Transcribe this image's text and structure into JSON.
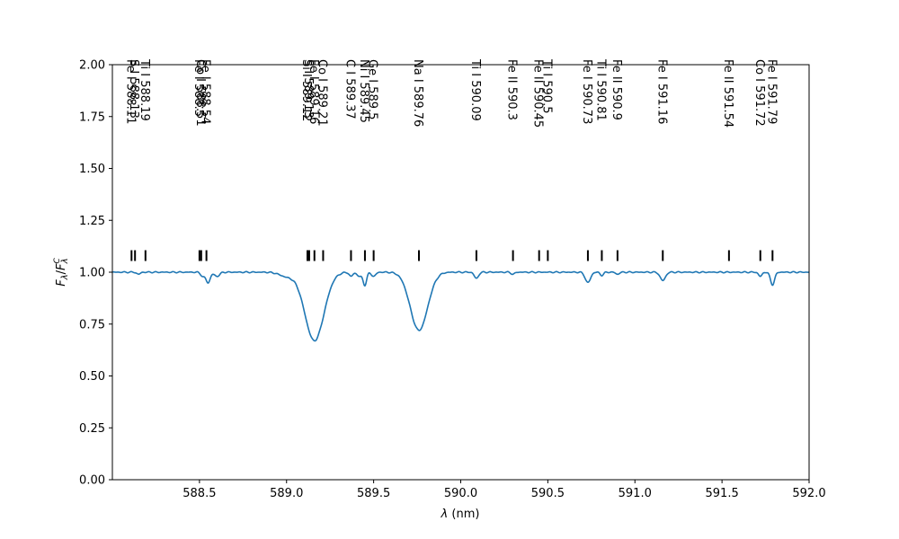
{
  "chart_data": {
    "type": "line",
    "title": "",
    "xlabel": "λ (nm)",
    "ylabel": "F_λ/F_λ^C",
    "xlim": [
      588.0,
      592.0
    ],
    "ylim": [
      0.0,
      2.0
    ],
    "xticks": [
      588.5,
      589.0,
      589.5,
      590.0,
      590.5,
      591.0,
      591.5,
      592.0
    ],
    "xtick_labels": [
      "588.5",
      "589.0",
      "589.5",
      "590.0",
      "590.5",
      "591.0",
      "591.5",
      "592.0"
    ],
    "yticks": [
      0.0,
      0.25,
      0.5,
      0.75,
      1.0,
      1.25,
      1.5,
      1.75,
      2.0
    ],
    "ytick_labels": [
      "0.00",
      "0.25",
      "0.50",
      "0.75",
      "1.00",
      "1.25",
      "1.50",
      "1.75",
      "2.00"
    ],
    "series_color": "#1f77b4",
    "continuum": 1.0,
    "absorption_lines": [
      {
        "center": 588.15,
        "depth": 0.01,
        "width": 0.01
      },
      {
        "center": 588.52,
        "depth": 0.02,
        "width": 0.012
      },
      {
        "center": 588.55,
        "depth": 0.05,
        "width": 0.012
      },
      {
        "center": 588.6,
        "depth": 0.02,
        "width": 0.015
      },
      {
        "center": 589.0,
        "depth": 0.02,
        "width": 0.04
      },
      {
        "center": 589.16,
        "depth": 0.33,
        "width": 0.055
      },
      {
        "center": 589.37,
        "depth": 0.02,
        "width": 0.01
      },
      {
        "center": 589.42,
        "depth": 0.02,
        "width": 0.015
      },
      {
        "center": 589.45,
        "depth": 0.06,
        "width": 0.01
      },
      {
        "center": 589.5,
        "depth": 0.02,
        "width": 0.012
      },
      {
        "center": 589.76,
        "depth": 0.28,
        "width": 0.05
      },
      {
        "center": 590.09,
        "depth": 0.03,
        "width": 0.012
      },
      {
        "center": 590.3,
        "depth": 0.01,
        "width": 0.01
      },
      {
        "center": 590.73,
        "depth": 0.05,
        "width": 0.015
      },
      {
        "center": 590.81,
        "depth": 0.015,
        "width": 0.01
      },
      {
        "center": 590.9,
        "depth": 0.01,
        "width": 0.01
      },
      {
        "center": 591.16,
        "depth": 0.04,
        "width": 0.015
      },
      {
        "center": 591.72,
        "depth": 0.02,
        "width": 0.01
      },
      {
        "center": 591.79,
        "depth": 0.06,
        "width": 0.012
      }
    ],
    "line_markers": [
      {
        "x": 588.11,
        "label": "Fe I 588.11"
      },
      {
        "x": 588.13,
        "label": "S I 588.13"
      },
      {
        "x": 588.19,
        "label": "Ti I 588.19"
      },
      {
        "x": 588.5,
        "label": "Fe I 588.5"
      },
      {
        "x": 588.51,
        "label": "Co I 588.51"
      },
      {
        "x": 588.54,
        "label": "Fe I 588.54"
      },
      {
        "x": 589.12,
        "label": "Si I 589.12"
      },
      {
        "x": 589.13,
        "label": "S I 589.13"
      },
      {
        "x": 589.16,
        "label": "Fe I 589.16"
      },
      {
        "x": 589.21,
        "label": "Co I 589.21"
      },
      {
        "x": 589.37,
        "label": "C I 589.37"
      },
      {
        "x": 589.45,
        "label": "Ni I 589.45"
      },
      {
        "x": 589.5,
        "label": "Ge I 589.5"
      },
      {
        "x": 589.76,
        "label": "Na I 589.76"
      },
      {
        "x": 590.09,
        "label": "Ti I 590.09"
      },
      {
        "x": 590.3,
        "label": "Fe II 590.3"
      },
      {
        "x": 590.45,
        "label": "Fe II 590.45"
      },
      {
        "x": 590.5,
        "label": "Ti I 590.5"
      },
      {
        "x": 590.73,
        "label": "Fe I 590.73"
      },
      {
        "x": 590.81,
        "label": "Ti I 590.81"
      },
      {
        "x": 590.9,
        "label": "Fe II 590.9"
      },
      {
        "x": 591.16,
        "label": "Fe I 591.16"
      },
      {
        "x": 591.54,
        "label": "Fe II 591.54"
      },
      {
        "x": 591.72,
        "label": "Co I 591.72"
      },
      {
        "x": 591.79,
        "label": "Fe I 591.79"
      }
    ],
    "marker_y": 1.08,
    "grid": false,
    "legend": "none"
  }
}
